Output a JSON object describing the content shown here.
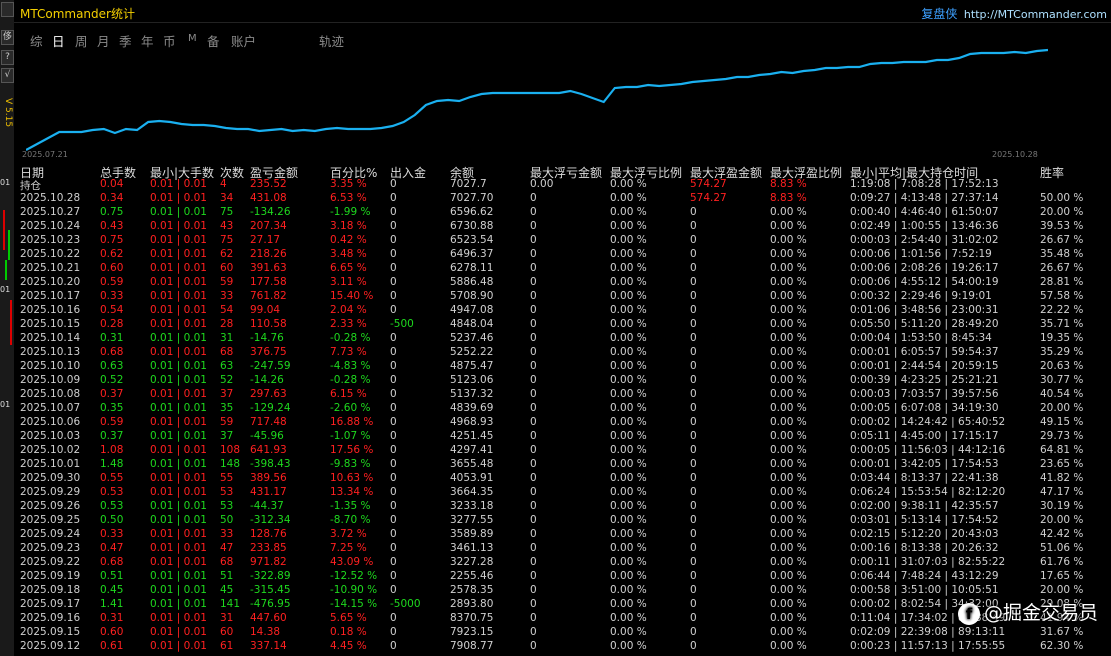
{
  "window": {
    "title": "MTCommander统计"
  },
  "brand": {
    "name": "复盘侠",
    "url": "http://MTCommander.com"
  },
  "left_strip": {
    "buttons": [
      "",
      "侈",
      "?",
      "√"
    ],
    "version": "V 5.15",
    "numbers": [
      "01",
      "01",
      "01"
    ]
  },
  "tabs": [
    {
      "label": "综",
      "active": false
    },
    {
      "label": "日",
      "active": true
    },
    {
      "label": "周",
      "active": false
    },
    {
      "label": "月",
      "active": false
    },
    {
      "label": "季",
      "active": false
    },
    {
      "label": "年",
      "active": false
    },
    {
      "label": "币",
      "active": false
    },
    {
      "label": "M",
      "active": false
    },
    {
      "label": "备",
      "active": false
    },
    {
      "label": "账户",
      "active": false
    },
    {
      "label": "轨迹",
      "active": false
    }
  ],
  "chart_data": {
    "type": "line",
    "x_start": "2025.07.21",
    "x_end": "2025.10.28",
    "line_color": "#1ab0f0",
    "grid": false,
    "y": [
      0.0,
      0.06,
      0.12,
      0.18,
      0.18,
      0.18,
      0.2,
      0.21,
      0.17,
      0.21,
      0.2,
      0.28,
      0.29,
      0.28,
      0.26,
      0.25,
      0.25,
      0.24,
      0.22,
      0.21,
      0.21,
      0.19,
      0.2,
      0.21,
      0.19,
      0.2,
      0.19,
      0.21,
      0.22,
      0.21,
      0.21,
      0.21,
      0.22,
      0.24,
      0.28,
      0.35,
      0.45,
      0.49,
      0.5,
      0.49,
      0.53,
      0.56,
      0.57,
      0.57,
      0.57,
      0.57,
      0.57,
      0.57,
      0.57,
      0.59,
      0.56,
      0.52,
      0.48,
      0.62,
      0.63,
      0.63,
      0.65,
      0.64,
      0.65,
      0.66,
      0.68,
      0.69,
      0.7,
      0.71,
      0.73,
      0.73,
      0.75,
      0.76,
      0.78,
      0.77,
      0.79,
      0.8,
      0.82,
      0.82,
      0.83,
      0.83,
      0.86,
      0.87,
      0.87,
      0.88,
      0.88,
      0.88,
      0.9,
      0.9,
      0.92,
      0.96,
      0.97,
      0.97,
      0.97,
      0.98,
      0.97,
      0.99,
      1.0
    ]
  },
  "table": {
    "headers": [
      "日期",
      "总手数",
      "最小|大手数",
      "次数",
      "盈亏金额",
      "百分比%",
      "出入金",
      "余额",
      "最大浮亏金额",
      "最大浮亏比例",
      "最大浮盈金额",
      "最大浮盈比例",
      "最小|平均|最大持仓时间",
      "胜率"
    ],
    "rows": [
      [
        "持仓",
        "0.04",
        "0.01 | 0.01",
        "4",
        "235.52",
        "3.35 %",
        "0",
        "7027.7",
        "0.00",
        "0.00 %",
        "574.27",
        "8.83 %",
        "1:19:08 | 7:08:28 | 17:52:13",
        ""
      ],
      [
        "2025.10.28",
        "0.34",
        "0.01 | 0.01",
        "34",
        "431.08",
        "6.53 %",
        "0",
        "7027.70",
        "0",
        "0.00 %",
        "574.27",
        "8.83 %",
        "0:09:27 | 4:13:48 | 27:37:14",
        "50.00 %"
      ],
      [
        "2025.10.27",
        "0.75",
        "0.01 | 0.01",
        "75",
        "-134.26",
        "-1.99 %",
        "0",
        "6596.62",
        "0",
        "0.00 %",
        "0",
        "0.00 %",
        "0:00:40 | 4:46:40 | 61:50:07",
        "20.00 %"
      ],
      [
        "2025.10.24",
        "0.43",
        "0.01 | 0.01",
        "43",
        "207.34",
        "3.18 %",
        "0",
        "6730.88",
        "0",
        "0.00 %",
        "0",
        "0.00 %",
        "0:02:49 | 1:00:55 | 13:46:36",
        "39.53 %"
      ],
      [
        "2025.10.23",
        "0.75",
        "0.01 | 0.01",
        "75",
        "27.17",
        "0.42 %",
        "0",
        "6523.54",
        "0",
        "0.00 %",
        "0",
        "0.00 %",
        "0:00:03 | 2:54:40 | 31:02:02",
        "26.67 %"
      ],
      [
        "2025.10.22",
        "0.62",
        "0.01 | 0.01",
        "62",
        "218.26",
        "3.48 %",
        "0",
        "6496.37",
        "0",
        "0.00 %",
        "0",
        "0.00 %",
        "0:00:06 | 1:01:56 | 7:52:19",
        "35.48 %"
      ],
      [
        "2025.10.21",
        "0.60",
        "0.01 | 0.01",
        "60",
        "391.63",
        "6.65 %",
        "0",
        "6278.11",
        "0",
        "0.00 %",
        "0",
        "0.00 %",
        "0:00:06 | 2:08:26 | 19:26:17",
        "26.67 %"
      ],
      [
        "2025.10.20",
        "0.59",
        "0.01 | 0.01",
        "59",
        "177.58",
        "3.11 %",
        "0",
        "5886.48",
        "0",
        "0.00 %",
        "0",
        "0.00 %",
        "0:00:06 | 4:55:12 | 54:00:19",
        "28.81 %"
      ],
      [
        "2025.10.17",
        "0.33",
        "0.01 | 0.01",
        "33",
        "761.82",
        "15.40 %",
        "0",
        "5708.90",
        "0",
        "0.00 %",
        "0",
        "0.00 %",
        "0:00:32 | 2:29:46 | 9:19:01",
        "57.58 %"
      ],
      [
        "2025.10.16",
        "0.54",
        "0.01 | 0.01",
        "54",
        "99.04",
        "2.04 %",
        "0",
        "4947.08",
        "0",
        "0.00 %",
        "0",
        "0.00 %",
        "0:01:06 | 3:48:56 | 23:00:31",
        "22.22 %"
      ],
      [
        "2025.10.15",
        "0.28",
        "0.01 | 0.01",
        "28",
        "110.58",
        "2.33 %",
        "-500",
        "4848.04",
        "0",
        "0.00 %",
        "0",
        "0.00 %",
        "0:05:50 | 5:11:20 | 28:49:20",
        "35.71 %"
      ],
      [
        "2025.10.14",
        "0.31",
        "0.01 | 0.01",
        "31",
        "-14.76",
        "-0.28 %",
        "0",
        "5237.46",
        "0",
        "0.00 %",
        "0",
        "0.00 %",
        "0:00:04 | 1:53:50 | 8:45:34",
        "19.35 %"
      ],
      [
        "2025.10.13",
        "0.68",
        "0.01 | 0.01",
        "68",
        "376.75",
        "7.73 %",
        "0",
        "5252.22",
        "0",
        "0.00 %",
        "0",
        "0.00 %",
        "0:00:01 | 6:05:57 | 59:54:37",
        "35.29 %"
      ],
      [
        "2025.10.10",
        "0.63",
        "0.01 | 0.01",
        "63",
        "-247.59",
        "-4.83 %",
        "0",
        "4875.47",
        "0",
        "0.00 %",
        "0",
        "0.00 %",
        "0:00:01 | 2:44:54 | 20:59:15",
        "20.63 %"
      ],
      [
        "2025.10.09",
        "0.52",
        "0.01 | 0.01",
        "52",
        "-14.26",
        "-0.28 %",
        "0",
        "5123.06",
        "0",
        "0.00 %",
        "0",
        "0.00 %",
        "0:00:39 | 4:23:25 | 25:21:21",
        "30.77 %"
      ],
      [
        "2025.10.08",
        "0.37",
        "0.01 | 0.01",
        "37",
        "297.63",
        "6.15 %",
        "0",
        "5137.32",
        "0",
        "0.00 %",
        "0",
        "0.00 %",
        "0:00:03 | 7:03:57 | 39:57:56",
        "40.54 %"
      ],
      [
        "2025.10.07",
        "0.35",
        "0.01 | 0.01",
        "35",
        "-129.24",
        "-2.60 %",
        "0",
        "4839.69",
        "0",
        "0.00 %",
        "0",
        "0.00 %",
        "0:00:05 | 6:07:08 | 34:19:30",
        "20.00 %"
      ],
      [
        "2025.10.06",
        "0.59",
        "0.01 | 0.01",
        "59",
        "717.48",
        "16.88 %",
        "0",
        "4968.93",
        "0",
        "0.00 %",
        "0",
        "0.00 %",
        "0:00:02 | 14:24:42 | 65:40:52",
        "49.15 %"
      ],
      [
        "2025.10.03",
        "0.37",
        "0.01 | 0.01",
        "37",
        "-45.96",
        "-1.07 %",
        "0",
        "4251.45",
        "0",
        "0.00 %",
        "0",
        "0.00 %",
        "0:05:11 | 4:45:00 | 17:15:17",
        "29.73 %"
      ],
      [
        "2025.10.02",
        "1.08",
        "0.01 | 0.01",
        "108",
        "641.93",
        "17.56 %",
        "0",
        "4297.41",
        "0",
        "0.00 %",
        "0",
        "0.00 %",
        "0:00:05 | 11:56:03 | 44:12:16",
        "64.81 %"
      ],
      [
        "2025.10.01",
        "1.48",
        "0.01 | 0.01",
        "148",
        "-398.43",
        "-9.83 %",
        "0",
        "3655.48",
        "0",
        "0.00 %",
        "0",
        "0.00 %",
        "0:00:01 | 3:42:05 | 17:54:53",
        "23.65 %"
      ],
      [
        "2025.09.30",
        "0.55",
        "0.01 | 0.01",
        "55",
        "389.56",
        "10.63 %",
        "0",
        "4053.91",
        "0",
        "0.00 %",
        "0",
        "0.00 %",
        "0:03:44 | 8:13:37 | 22:41:38",
        "41.82 %"
      ],
      [
        "2025.09.29",
        "0.53",
        "0.01 | 0.01",
        "53",
        "431.17",
        "13.34 %",
        "0",
        "3664.35",
        "0",
        "0.00 %",
        "0",
        "0.00 %",
        "0:06:24 | 15:53:54 | 82:12:20",
        "47.17 %"
      ],
      [
        "2025.09.26",
        "0.53",
        "0.01 | 0.01",
        "53",
        "-44.37",
        "-1.35 %",
        "0",
        "3233.18",
        "0",
        "0.00 %",
        "0",
        "0.00 %",
        "0:02:00 | 9:38:11 | 42:35:57",
        "30.19 %"
      ],
      [
        "2025.09.25",
        "0.50",
        "0.01 | 0.01",
        "50",
        "-312.34",
        "-8.70 %",
        "0",
        "3277.55",
        "0",
        "0.00 %",
        "0",
        "0.00 %",
        "0:03:01 | 5:13:14 | 17:54:52",
        "20.00 %"
      ],
      [
        "2025.09.24",
        "0.33",
        "0.01 | 0.01",
        "33",
        "128.76",
        "3.72 %",
        "0",
        "3589.89",
        "0",
        "0.00 %",
        "0",
        "0.00 %",
        "0:02:15 | 5:12:20 | 20:43:03",
        "42.42 %"
      ],
      [
        "2025.09.23",
        "0.47",
        "0.01 | 0.01",
        "47",
        "233.85",
        "7.25 %",
        "0",
        "3461.13",
        "0",
        "0.00 %",
        "0",
        "0.00 %",
        "0:00:16 | 8:13:38 | 20:26:32",
        "51.06 %"
      ],
      [
        "2025.09.22",
        "0.68",
        "0.01 | 0.01",
        "68",
        "971.82",
        "43.09 %",
        "0",
        "3227.28",
        "0",
        "0.00 %",
        "0",
        "0.00 %",
        "0:00:11 | 31:07:03 | 82:55:22",
        "61.76 %"
      ],
      [
        "2025.09.19",
        "0.51",
        "0.01 | 0.01",
        "51",
        "-322.89",
        "-12.52 %",
        "0",
        "2255.46",
        "0",
        "0.00 %",
        "0",
        "0.00 %",
        "0:06:44 | 7:48:24 | 43:12:29",
        "17.65 %"
      ],
      [
        "2025.09.18",
        "0.45",
        "0.01 | 0.01",
        "45",
        "-315.45",
        "-10.90 %",
        "0",
        "2578.35",
        "0",
        "0.00 %",
        "0",
        "0.00 %",
        "0:00:58 | 3:51:00 | 10:05:51",
        "20.00 %"
      ],
      [
        "2025.09.17",
        "1.41",
        "0.01 | 0.01",
        "141",
        "-476.95",
        "-14.15 %",
        "-5000",
        "2893.80",
        "0",
        "0.00 %",
        "0",
        "0.00 %",
        "0:00:02 | 8:02:54 | 34:32:00",
        "29.08 %"
      ],
      [
        "2025.09.16",
        "0.31",
        "0.01 | 0.01",
        "31",
        "447.60",
        "5.65 %",
        "0",
        "8370.75",
        "0",
        "0.00 %",
        "0",
        "0.00 %",
        "0:11:04 | 17:34:02 | 85:38:49",
        "41.94 %"
      ],
      [
        "2025.09.15",
        "0.60",
        "0.01 | 0.01",
        "60",
        "14.38",
        "0.18 %",
        "0",
        "7923.15",
        "0",
        "0.00 %",
        "0",
        "0.00 %",
        "0:02:09 | 22:39:08 | 89:13:11",
        "31.67 %"
      ],
      [
        "2025.09.12",
        "0.61",
        "0.01 | 0.01",
        "61",
        "337.14",
        "4.45 %",
        "0",
        "7908.77",
        "0",
        "0.00 %",
        "0",
        "0.00 %",
        "0:00:23 | 11:57:13 | 17:55:55",
        "62.30 %"
      ]
    ]
  },
  "watermark": {
    "text": "@掘金交易员"
  },
  "colors": {
    "profit": "#ff2020",
    "loss": "#1ed81e",
    "title": "#f5d000",
    "brand": "#3da0ff",
    "line": "#1ab0f0"
  }
}
